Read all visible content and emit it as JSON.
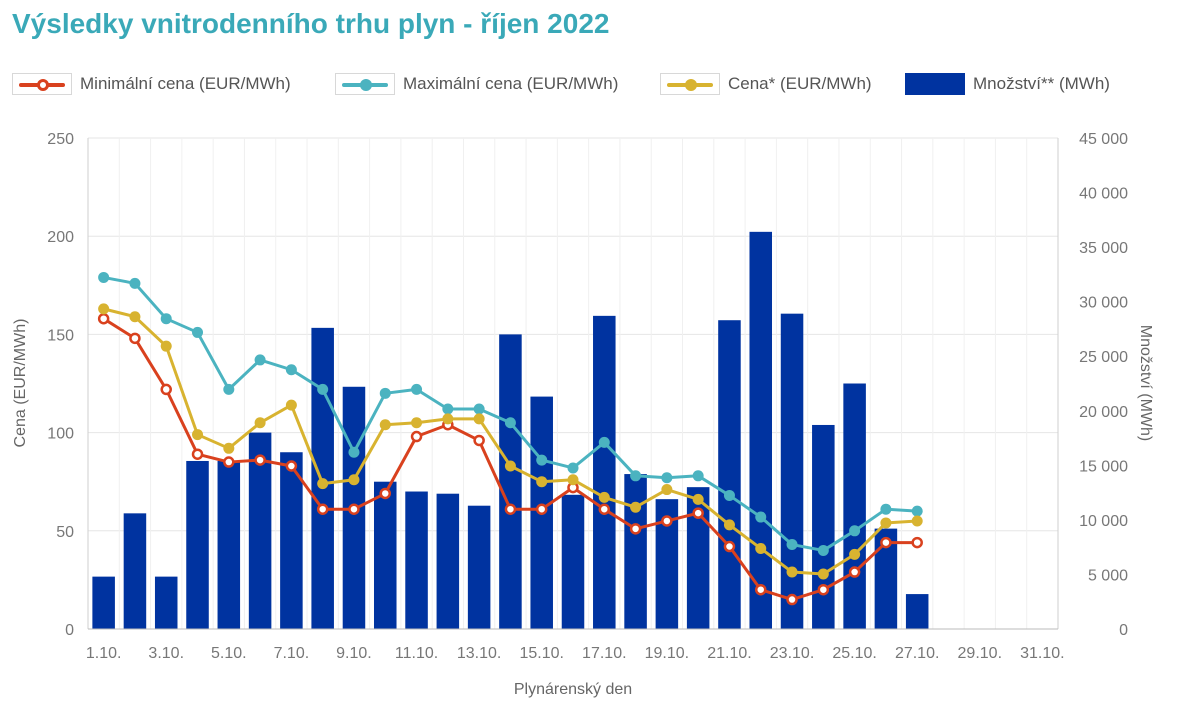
{
  "title": "Výsledky vnitrodenního trhu plyn - říjen 2022",
  "legend": [
    {
      "label": "Minimální cena (EUR/MWh)",
      "color": "#d9411e",
      "kind": "line-hollow"
    },
    {
      "label": "Maximální cena (EUR/MWh)",
      "color": "#4bb3c0",
      "kind": "line-filled"
    },
    {
      "label": "Cena* (EUR/MWh)",
      "color": "#d8b330",
      "kind": "line-filled"
    },
    {
      "label": "Množství** (MWh)",
      "color": "#0033a0",
      "kind": "bar"
    }
  ],
  "chart_data": {
    "type": "bar",
    "xlabel": "Plynárenský den",
    "ylabel_left": "Cena (EUR/MWh)",
    "ylabel_right": "Množství (MWh)",
    "ylim_left": [
      0,
      250
    ],
    "ylim_right": [
      0,
      45000
    ],
    "yticks_left": [
      "0",
      "50",
      "100",
      "150",
      "200",
      "250"
    ],
    "yticks_right": [
      "0",
      "5 000",
      "10 000",
      "15 000",
      "20 000",
      "25 000",
      "30 000",
      "35 000",
      "40 000",
      "45 000"
    ],
    "categories": [
      "1.10.",
      "2.10.",
      "3.10.",
      "4.10.",
      "5.10.",
      "6.10.",
      "7.10.",
      "8.10.",
      "9.10.",
      "10.10.",
      "11.10.",
      "12.10.",
      "13.10.",
      "14.10.",
      "15.10.",
      "16.10.",
      "17.10.",
      "18.10.",
      "19.10.",
      "20.10.",
      "21.10.",
      "22.10.",
      "23.10.",
      "24.10.",
      "25.10.",
      "26.10.",
      "27.10.",
      "28.10.",
      "29.10.",
      "30.10.",
      "31.10."
    ],
    "x_tick_labels": [
      "1.10.",
      "3.10.",
      "5.10.",
      "7.10.",
      "9.10.",
      "11.10.",
      "13.10.",
      "15.10.",
      "17.10.",
      "19.10.",
      "21.10.",
      "23.10.",
      "25.10.",
      "27.10.",
      "29.10.",
      "31.10."
    ],
    "grid": true,
    "series": [
      {
        "name": "Množství** (MWh)",
        "type": "bar",
        "axis": "right",
        "color": "#0033a0",
        "values": [
          4800,
          10600,
          4800,
          15400,
          15400,
          18000,
          16200,
          27600,
          22200,
          13500,
          12600,
          12400,
          11300,
          27000,
          21300,
          12300,
          28700,
          14200,
          11900,
          13000,
          28300,
          36400,
          28900,
          18700,
          22500,
          9200,
          3200,
          null,
          null,
          null,
          null
        ]
      },
      {
        "name": "Minimální cena (EUR/MWh)",
        "type": "line",
        "axis": "left",
        "color": "#d9411e",
        "marker": "hollow",
        "values": [
          158,
          148,
          122,
          89,
          85,
          86,
          83,
          61,
          61,
          69,
          98,
          104,
          96,
          61,
          61,
          72,
          61,
          51,
          55,
          59,
          42,
          20,
          15,
          20,
          29,
          44,
          44,
          null,
          null,
          null,
          null
        ]
      },
      {
        "name": "Maximální cena (EUR/MWh)",
        "type": "line",
        "axis": "left",
        "color": "#4bb3c0",
        "marker": "filled",
        "values": [
          179,
          176,
          158,
          151,
          122,
          137,
          132,
          122,
          90,
          120,
          122,
          112,
          112,
          105,
          86,
          82,
          95,
          78,
          77,
          78,
          68,
          57,
          43,
          40,
          50,
          61,
          60,
          null,
          null,
          null,
          null
        ]
      },
      {
        "name": "Cena* (EUR/MWh)",
        "type": "line",
        "axis": "left",
        "color": "#d8b330",
        "marker": "filled",
        "values": [
          163,
          159,
          144,
          99,
          92,
          105,
          114,
          74,
          76,
          104,
          105,
          107,
          107,
          83,
          75,
          76,
          67,
          62,
          71,
          66,
          53,
          41,
          29,
          28,
          38,
          54,
          55,
          null,
          null,
          null,
          null
        ]
      }
    ]
  }
}
